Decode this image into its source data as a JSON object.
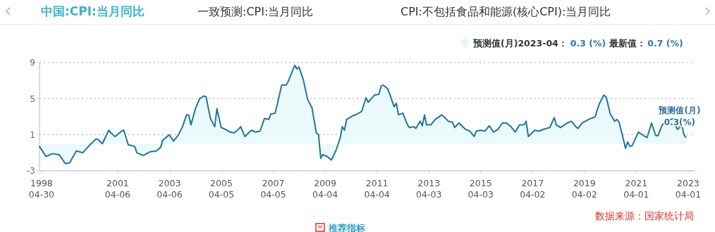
{
  "chart_data": {
    "type": "area",
    "title": "中国:CPI:当月同比",
    "x": [
      "1998-04",
      "1998-07",
      "1998-10",
      "1999-01",
      "1999-04",
      "1999-06",
      "1999-09",
      "1999-12",
      "2000-03",
      "2000-06",
      "2000-07",
      "2000-09",
      "2000-12",
      "2001-01",
      "2001-03",
      "2001-06",
      "2001-07",
      "2001-09",
      "2001-12",
      "2002-01",
      "2002-04",
      "2002-07",
      "2002-10",
      "2002-12",
      "2003-01",
      "2003-04",
      "2003-06",
      "2003-08",
      "2003-10",
      "2003-12",
      "2004-01",
      "2004-02",
      "2004-04",
      "2004-06",
      "2004-08",
      "2004-09",
      "2004-11",
      "2005-01",
      "2005-02",
      "2005-04",
      "2005-06",
      "2005-08",
      "2005-10",
      "2005-12",
      "2006-01",
      "2006-03",
      "2006-06",
      "2006-08",
      "2006-10",
      "2006-12",
      "2007-02",
      "2007-03",
      "2007-05",
      "2007-06",
      "2007-08",
      "2007-10",
      "2007-11",
      "2008-02",
      "2008-03",
      "2008-04",
      "2008-06",
      "2008-08",
      "2008-10",
      "2008-12",
      "2009-01",
      "2009-02",
      "2009-03",
      "2009-05",
      "2009-07",
      "2009-09",
      "2009-11",
      "2009-12",
      "2010-01",
      "2010-02",
      "2010-05",
      "2010-07",
      "2010-09",
      "2010-11",
      "2010-12",
      "2011-03",
      "2011-05",
      "2011-06",
      "2011-07",
      "2011-09",
      "2011-10",
      "2011-12",
      "2012-01",
      "2012-02",
      "2012-04",
      "2012-06",
      "2012-07",
      "2012-09",
      "2012-10",
      "2012-12",
      "2013-01",
      "2013-02",
      "2013-03",
      "2013-05",
      "2013-07",
      "2013-10",
      "2013-11",
      "2014-01",
      "2014-03",
      "2014-04",
      "2014-06",
      "2014-09",
      "2014-11",
      "2015-01",
      "2015-02",
      "2015-04",
      "2015-06",
      "2015-08",
      "2015-10",
      "2015-12",
      "2016-02",
      "2016-04",
      "2016-06",
      "2016-08",
      "2016-10",
      "2016-12",
      "2017-01",
      "2017-02",
      "2017-05",
      "2017-07",
      "2017-09",
      "2017-12",
      "2018-02",
      "2018-03",
      "2018-05",
      "2018-08",
      "2018-10",
      "2018-12",
      "2019-01",
      "2019-03",
      "2019-06",
      "2019-09",
      "2019-10",
      "2019-11",
      "2020-01",
      "2020-02",
      "2020-04",
      "2020-06",
      "2020-07",
      "2020-08",
      "2020-10",
      "2020-11",
      "2020-12",
      "2021-01",
      "2021-02",
      "2021-05",
      "2021-08",
      "2021-09",
      "2021-11",
      "2022-01",
      "2022-02",
      "2022-04",
      "2022-06",
      "2022-09",
      "2022-10",
      "2022-11",
      "2022-12",
      "2023-01",
      "2023-02",
      "2023-03"
    ],
    "series": [
      {
        "color": "#1f769c",
        "values": [
          -0.3,
          -1.4,
          -1.1,
          -1.2,
          -2.2,
          -2.1,
          -0.8,
          -1.0,
          -0.2,
          0.5,
          0.5,
          0.0,
          1.5,
          1.2,
          0.8,
          1.4,
          1.5,
          -0.1,
          -0.3,
          -1.0,
          -1.3,
          -0.9,
          -0.8,
          -0.4,
          0.4,
          1.0,
          0.3,
          0.9,
          1.8,
          3.2,
          3.2,
          2.1,
          3.8,
          5.0,
          5.3,
          5.2,
          2.8,
          1.9,
          3.9,
          1.8,
          1.6,
          1.3,
          1.2,
          1.6,
          1.9,
          0.8,
          1.5,
          1.3,
          1.4,
          2.8,
          2.7,
          3.3,
          3.4,
          4.4,
          6.5,
          6.5,
          6.9,
          8.7,
          8.3,
          8.5,
          7.1,
          4.9,
          4.0,
          1.2,
          1.0,
          -1.6,
          -1.2,
          -1.4,
          -1.8,
          -0.8,
          0.6,
          1.9,
          1.5,
          2.7,
          3.1,
          3.3,
          3.6,
          5.1,
          4.6,
          5.4,
          5.5,
          6.4,
          6.5,
          6.1,
          5.5,
          4.1,
          4.5,
          3.2,
          3.4,
          2.2,
          1.8,
          1.9,
          1.7,
          2.5,
          2.0,
          3.2,
          2.1,
          2.1,
          2.7,
          3.2,
          3.0,
          2.5,
          2.4,
          1.8,
          2.3,
          1.6,
          1.4,
          0.8,
          1.4,
          1.5,
          1.4,
          2.0,
          1.3,
          1.6,
          2.3,
          2.3,
          1.9,
          1.3,
          2.1,
          2.1,
          2.5,
          0.8,
          1.5,
          1.4,
          1.6,
          1.8,
          2.9,
          2.1,
          1.8,
          2.3,
          2.5,
          1.9,
          1.7,
          2.3,
          2.7,
          3.0,
          3.8,
          4.5,
          5.4,
          5.2,
          3.3,
          2.5,
          2.7,
          2.4,
          0.5,
          -0.5,
          0.2,
          -0.3,
          -0.2,
          1.3,
          0.8,
          0.7,
          2.3,
          0.9,
          0.9,
          2.1,
          2.5,
          2.8,
          2.1,
          1.6,
          1.8,
          2.1,
          1.0,
          0.7
        ]
      }
    ],
    "xlim": [
      "1998-04-01",
      "2023-06-30"
    ],
    "xticks": [
      {
        "value": "1998-04-30",
        "label": "1998\n04-30"
      },
      {
        "value": "2001-04-06",
        "label": "2001\n04-06"
      },
      {
        "value": "2003-04-06",
        "label": "2003\n04-06"
      },
      {
        "value": "2005-04-05",
        "label": "2005\n04-05"
      },
      {
        "value": "2007-04-05",
        "label": "2007\n04-05"
      },
      {
        "value": "2009-04-04",
        "label": "2009\n04-04"
      },
      {
        "value": "2011-04-04",
        "label": "2011\n04-04"
      },
      {
        "value": "2013-04-03",
        "label": "2013\n04-03"
      },
      {
        "value": "2015-04-03",
        "label": "2015\n04-03"
      },
      {
        "value": "2017-04-02",
        "label": "2017\n04-02"
      },
      {
        "value": "2019-04-02",
        "label": "2019\n04-02"
      },
      {
        "value": "2021-04-01",
        "label": "2021\n04-01"
      },
      {
        "value": "2023-04-01",
        "label": "2023\n04-01"
      }
    ],
    "ylim": [
      -3,
      9
    ],
    "yticks": [
      -3,
      1,
      5,
      9
    ],
    "grid": "y",
    "annotations": [
      "一致预测:CPI:当月同比",
      "CPI:不包括食品和能源(核心CPI):当月同比",
      "预测值(月)2023-04：",
      "0.3 (%)",
      "最新值：",
      "0.7 (%)",
      {
        "text": "预测值(月)\n0.3(%)",
        "x": "2023-04",
        "y": 0.3
      },
      "数据来源：国家统计局",
      "推荐指标"
    ]
  }
}
